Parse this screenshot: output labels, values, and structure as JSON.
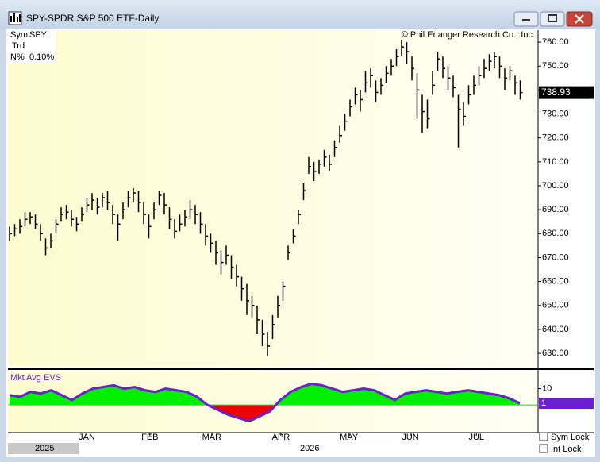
{
  "window": {
    "title": "SPY-SPDR S&P 500 ETF-Daily"
  },
  "info": [
    {
      "label": "Sym",
      "value": "SPY"
    },
    {
      "label": "Trd"
    },
    {
      "label": "N%",
      "value": "0.10%"
    }
  ],
  "copyright": "© Phil Erlanger Research Co., Inc.",
  "chart_data": [
    {
      "type": "ohlc",
      "color": "#000000",
      "high": [
        683,
        684,
        686,
        689,
        689,
        688,
        684,
        678,
        680,
        686,
        691,
        692,
        690,
        687,
        691,
        695,
        697,
        695,
        697,
        698,
        692,
        688,
        693,
        698,
        699,
        698,
        693,
        688,
        693,
        698,
        697,
        691,
        686,
        688,
        690,
        694,
        692,
        689,
        684,
        680,
        677,
        673,
        675,
        671,
        667,
        662,
        659,
        654,
        650,
        644,
        639,
        646,
        654,
        660,
        675,
        682,
        690,
        701,
        712,
        710,
        711,
        715,
        713,
        719,
        725,
        730,
        736,
        741,
        740,
        748,
        749,
        744,
        745,
        750,
        753,
        757,
        761,
        760,
        754,
        747,
        738,
        736,
        748,
        756,
        754,
        750,
        746,
        738,
        735,
        742,
        746,
        750,
        753,
        755,
        756,
        754,
        749,
        750,
        746,
        744
      ],
      "low": [
        677,
        679,
        680,
        683,
        684,
        682,
        677,
        671,
        674,
        680,
        685,
        686,
        683,
        681,
        685,
        689,
        690,
        688,
        691,
        690,
        684,
        677,
        686,
        691,
        693,
        689,
        684,
        678,
        686,
        692,
        688,
        682,
        678,
        681,
        683,
        686,
        684,
        680,
        675,
        672,
        667,
        663,
        667,
        661,
        658,
        652,
        646,
        645,
        638,
        633,
        629,
        636,
        645,
        652,
        669,
        676,
        684,
        694,
        705,
        702,
        705,
        708,
        706,
        712,
        718,
        723,
        729,
        734,
        731,
        739,
        741,
        735,
        738,
        743,
        746,
        750,
        754,
        751,
        744,
        728,
        722,
        724,
        738,
        748,
        745,
        740,
        737,
        716,
        725,
        734,
        738,
        742,
        745,
        748,
        749,
        745,
        740,
        744,
        738,
        736
      ],
      "close": [
        680,
        682,
        683,
        686,
        687,
        684,
        680,
        674,
        677,
        684,
        688,
        689,
        686,
        684,
        688,
        692,
        694,
        691,
        695,
        693,
        688,
        684,
        690,
        695,
        697,
        693,
        688,
        683,
        690,
        696,
        692,
        686,
        681,
        684,
        687,
        690,
        688,
        684,
        679,
        676,
        672,
        668,
        671,
        666,
        662,
        657,
        652,
        650,
        644,
        638,
        633,
        642,
        650,
        658,
        672,
        679,
        688,
        698,
        708,
        706,
        709,
        712,
        709,
        716,
        721,
        727,
        733,
        738,
        736,
        743,
        746,
        739,
        742,
        747,
        750,
        754,
        758,
        756,
        749,
        740,
        731,
        728,
        742,
        753,
        749,
        745,
        741,
        732,
        729,
        738,
        742,
        746,
        749,
        752,
        754,
        750,
        745,
        748,
        743,
        738.93
      ],
      "xlim": [
        0,
        100
      ],
      "xticks": [
        {
          "value": 15,
          "label": "JAN"
        },
        {
          "value": 27.2,
          "label": "FEB"
        },
        {
          "value": 39.2,
          "label": "MAR"
        },
        {
          "value": 52.6,
          "label": "APR"
        },
        {
          "value": 65.8,
          "label": "MAY"
        },
        {
          "value": 77.7,
          "label": "JUN"
        },
        {
          "value": 90.5,
          "label": "JUL"
        }
      ],
      "ylim": [
        624.4,
        765
      ],
      "yticks": [
        {
          "value": 630,
          "label": "630.00"
        },
        {
          "value": 640,
          "label": "640.00"
        },
        {
          "value": 650,
          "label": "650.00"
        },
        {
          "value": 660,
          "label": "660.00"
        },
        {
          "value": 670,
          "label": "670.00"
        },
        {
          "value": 680,
          "label": "680.00"
        },
        {
          "value": 690,
          "label": "690.00"
        },
        {
          "value": 700,
          "label": "700.00"
        },
        {
          "value": 710,
          "label": "710.00"
        },
        {
          "value": 720,
          "label": "720.00"
        },
        {
          "value": 730,
          "label": "730.00"
        },
        {
          "value": 740,
          "label": "740.00"
        },
        {
          "value": 750,
          "label": "750.00"
        },
        {
          "value": 760,
          "label": "760.00"
        }
      ]
    },
    {
      "type": "area",
      "title": "Mkt Avg EVS",
      "line_color": "#6a1fd0",
      "positive_color": "#00ee00",
      "negative_color": "#ee0000",
      "values": [
        6,
        5,
        8,
        7,
        9,
        6,
        3,
        7,
        10,
        11,
        12,
        10,
        11,
        9,
        8,
        10,
        9,
        8,
        5,
        0,
        -3,
        -6,
        -8,
        -10,
        -7,
        -4,
        3,
        8,
        11,
        13,
        12,
        10,
        8,
        9,
        10,
        9,
        6,
        3,
        7,
        8,
        9,
        8,
        7,
        8,
        9,
        8,
        7,
        6,
        4,
        1
      ],
      "ylim": [
        -17,
        20.5
      ],
      "yticks": [
        10
      ]
    }
  ],
  "footer": {
    "years": [
      "2025",
      "2026"
    ],
    "checkboxes": [
      "Sym Lock",
      "Int Lock"
    ]
  }
}
